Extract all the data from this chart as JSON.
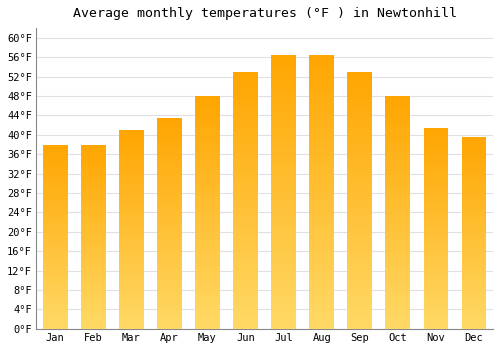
{
  "title": "Average monthly temperatures (°F ) in Newtonhill",
  "months": [
    "Jan",
    "Feb",
    "Mar",
    "Apr",
    "May",
    "Jun",
    "Jul",
    "Aug",
    "Sep",
    "Oct",
    "Nov",
    "Dec"
  ],
  "values": [
    38,
    38,
    41,
    43.5,
    48,
    53,
    56.5,
    56.5,
    53,
    48,
    41.5,
    39.5
  ],
  "bar_color": "#FFA500",
  "bar_color_light": "#FFD966",
  "ylim": [
    0,
    62
  ],
  "yticks": [
    0,
    4,
    8,
    12,
    16,
    20,
    24,
    28,
    32,
    36,
    40,
    44,
    48,
    52,
    56,
    60
  ],
  "ytick_labels": [
    "0°F",
    "4°F",
    "8°F",
    "12°F",
    "16°F",
    "20°F",
    "24°F",
    "28°F",
    "32°F",
    "36°F",
    "40°F",
    "44°F",
    "48°F",
    "52°F",
    "56°F",
    "60°F"
  ],
  "background_color": "#FFFFFF",
  "grid_color": "#E0E0E0",
  "title_fontsize": 9.5,
  "tick_fontsize": 7.5,
  "bar_width": 0.65
}
